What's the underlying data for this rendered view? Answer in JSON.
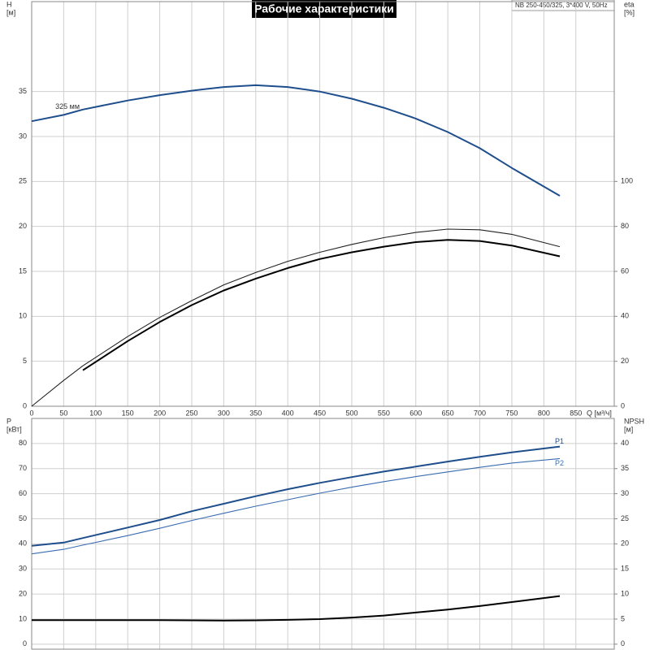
{
  "chart_data": [
    {
      "type": "line",
      "title": "Рабочие характеристики",
      "subtitle": "NB 250-450/325, 3*400 V, 50Hz",
      "annotation": "325 мм",
      "ylabel": "H",
      "ylabel_unit": "[м]",
      "y2label": "eta",
      "y2label_unit": "[%]",
      "xlabel": "Q [м³/ч]",
      "xlim": [
        0,
        910
      ],
      "xticks": [
        0,
        50,
        100,
        150,
        200,
        250,
        300,
        350,
        400,
        450,
        500,
        550,
        600,
        650,
        700,
        750,
        800,
        850
      ],
      "ylim": [
        0,
        45
      ],
      "yticks": [
        0,
        5,
        10,
        15,
        20,
        25,
        30,
        35
      ],
      "y2lim": [
        0,
        180
      ],
      "y2ticks": [
        0,
        20,
        40,
        60,
        80,
        100
      ],
      "grid": true,
      "x": [
        0,
        50,
        80,
        150,
        200,
        250,
        300,
        350,
        400,
        450,
        500,
        550,
        600,
        650,
        700,
        750,
        825
      ],
      "series": [
        {
          "color": "#1f4e8c",
          "style": "thick",
          "values": [
            31.7,
            32.4,
            33.0,
            34.0,
            34.6,
            35.1,
            35.5,
            35.7,
            35.5,
            35.0,
            34.2,
            33.2,
            32.0,
            30.5,
            28.7,
            26.5,
            23.4
          ]
        },
        {
          "color": "#222222",
          "style": "thin",
          "axis": "y2",
          "values": [
            0,
            11.5,
            18,
            31,
            39.5,
            47,
            54,
            59.5,
            64.5,
            68.5,
            72,
            75,
            77.3,
            78.8,
            78.5,
            76.5,
            71
          ]
        },
        {
          "color": "#000000",
          "style": "thick",
          "axis": "y2",
          "values": [
            null,
            null,
            16,
            29,
            37.5,
            45,
            51.5,
            56.8,
            61.5,
            65.5,
            68.5,
            71,
            73,
            74,
            73.5,
            71.5,
            66.7
          ]
        }
      ]
    },
    {
      "type": "line",
      "ylabel": "P",
      "ylabel_unit": "[кВт]",
      "y2label": "NPSH",
      "y2label_unit": "[м]",
      "xlim": [
        0,
        910
      ],
      "ylim": [
        -2,
        90
      ],
      "yticks": [
        0,
        10,
        20,
        30,
        40,
        50,
        60,
        70,
        80
      ],
      "y2lim": [
        -1,
        45
      ],
      "y2ticks": [
        0,
        5,
        10,
        15,
        20,
        25,
        30,
        35,
        40
      ],
      "grid": true,
      "x": [
        0,
        50,
        80,
        150,
        200,
        250,
        300,
        350,
        400,
        450,
        500,
        550,
        600,
        650,
        700,
        750,
        825
      ],
      "series": [
        {
          "name": "P1",
          "color": "#1f4e8c",
          "style": "thick",
          "values": [
            39.2,
            40.5,
            42.3,
            46.5,
            49.5,
            53,
            56,
            59,
            61.8,
            64.3,
            66.6,
            68.8,
            70.8,
            72.8,
            74.7,
            76.5,
            78.8
          ]
        },
        {
          "name": "P2",
          "color": "#3a6db0",
          "style": "thin",
          "values": [
            36,
            37.8,
            39.5,
            43.3,
            46.2,
            49.3,
            52.2,
            55,
            57.6,
            60.2,
            62.6,
            64.8,
            66.8,
            68.7,
            70.5,
            72.2,
            74
          ]
        },
        {
          "color": "#000000",
          "style": "thick",
          "axis": "y2",
          "values": [
            4.8,
            4.8,
            4.8,
            4.8,
            4.78,
            4.75,
            4.72,
            4.75,
            4.85,
            5.0,
            5.3,
            5.7,
            6.3,
            6.9,
            7.6,
            8.4,
            9.6
          ]
        }
      ]
    }
  ]
}
